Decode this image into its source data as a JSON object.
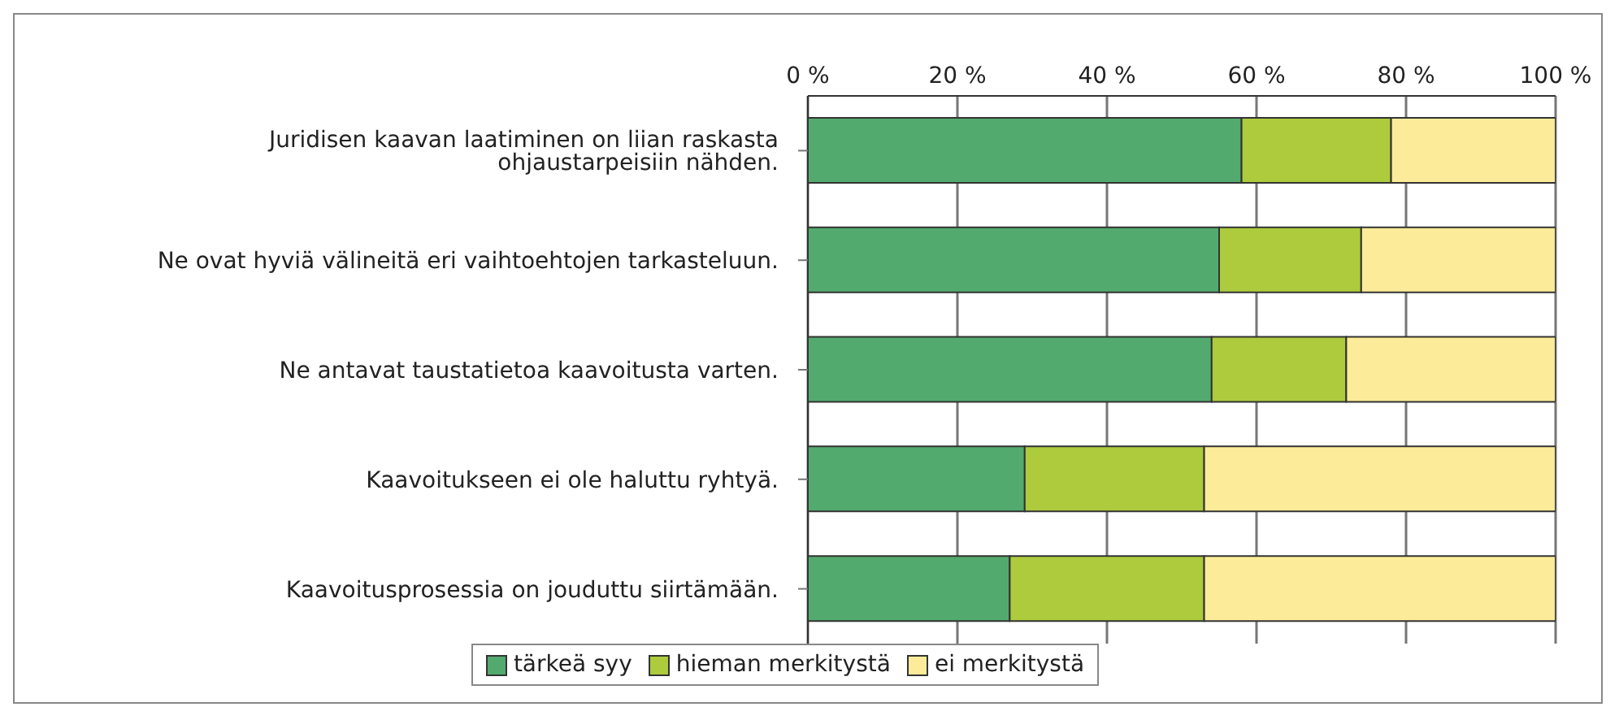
{
  "chart_data": {
    "type": "bar",
    "orientation": "horizontal",
    "stacked": true,
    "categories": [
      "Juridisen kaavan laatiminen on liian raskasta ohjaustarpeisiin nähden.",
      "Ne ovat hyviä välineitä eri vaihtoehtojen tarkasteluun.",
      "Ne antavat taustatietoa kaavoitusta varten.",
      "Kaavoitukseen ei ole haluttu ryhtyä.",
      "Kaavoitusprosessia on jouduttu siirtämään."
    ],
    "series": [
      {
        "name": "tärkeä syy",
        "color": "#53aa6e",
        "values": [
          58,
          55,
          54,
          29,
          27
        ]
      },
      {
        "name": "hieman merkitystä",
        "color": "#adcb3d",
        "values": [
          20,
          19,
          18,
          24,
          26
        ]
      },
      {
        "name": "ei merkitystä",
        "color": "#fcec99",
        "values": [
          22,
          26,
          28,
          47,
          47
        ]
      }
    ],
    "xlim": [
      0,
      100
    ],
    "xticks": [
      {
        "value": 0,
        "label": "0 %"
      },
      {
        "value": 20,
        "label": "20 %"
      },
      {
        "value": 40,
        "label": "40 %"
      },
      {
        "value": 60,
        "label": "60 %"
      },
      {
        "value": 80,
        "label": "80 %"
      },
      {
        "value": 100,
        "label": "100 %"
      }
    ],
    "grid": "x",
    "legend": "bottom"
  }
}
